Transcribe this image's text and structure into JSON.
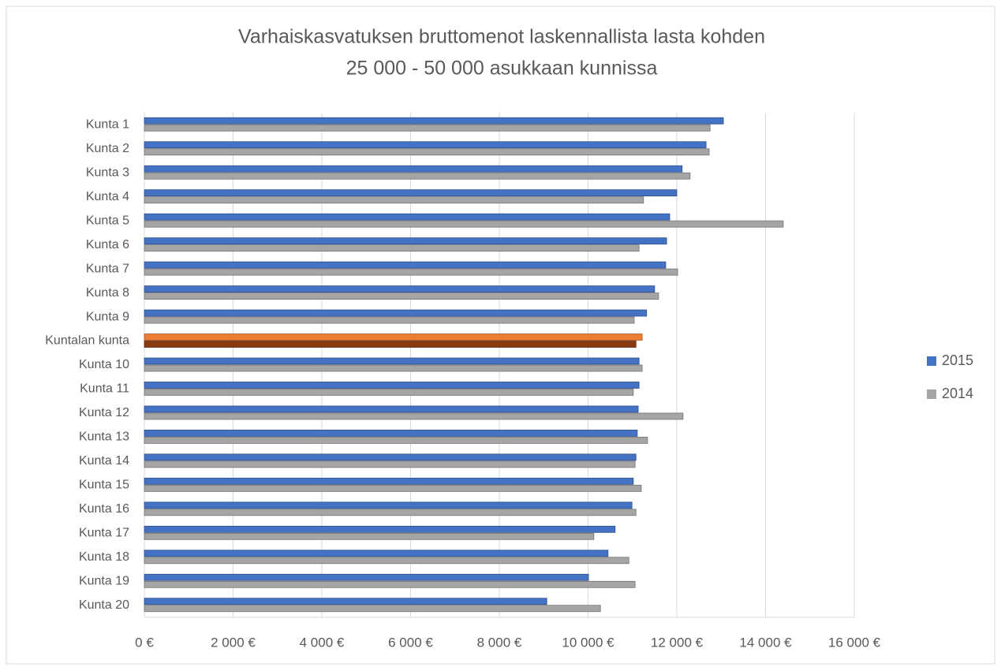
{
  "chart_data": {
    "type": "bar",
    "orientation": "horizontal",
    "title": [
      "Varhaiskasvatuksen bruttomenot laskennallista lasta kohden",
      "25 000 - 50 000 asukkaan kunnissa"
    ],
    "categories": [
      "Kunta 1",
      "Kunta 2",
      "Kunta 3",
      "Kunta 4",
      "Kunta 5",
      "Kunta 6",
      "Kunta 7",
      "Kunta 8",
      "Kunta 9",
      "Kuntalan kunta",
      "Kunta 10",
      "Kunta 11",
      "Kunta 12",
      "Kunta 13",
      "Kunta 14",
      "Kunta 15",
      "Kunta 16",
      "Kunta 17",
      "Kunta 18",
      "Kunta 19",
      "Kunta 20"
    ],
    "series": [
      {
        "name": "2015",
        "color": "#4472c4",
        "values": [
          13050,
          12660,
          12120,
          12000,
          11840,
          11770,
          11750,
          11500,
          11320,
          11220,
          11150,
          11150,
          11130,
          11110,
          11080,
          11020,
          10990,
          10610,
          10450,
          10010,
          9070
        ]
      },
      {
        "name": "2014",
        "color": "#a5a5a5",
        "values": [
          12750,
          12730,
          12300,
          11250,
          14400,
          11150,
          12020,
          11590,
          11040,
          11080,
          11220,
          11020,
          12140,
          11340,
          11060,
          11200,
          11080,
          10130,
          10920,
          11060,
          10280
        ]
      }
    ],
    "highlight": {
      "category_index": 9,
      "colors": [
        "#ed7d31",
        "#8b3a0f"
      ]
    },
    "xlim": [
      0,
      16000
    ],
    "xticks": [
      {
        "value": 0,
        "label": "0 €"
      },
      {
        "value": 2000,
        "label": "2 000 €"
      },
      {
        "value": 4000,
        "label": "4 000 €"
      },
      {
        "value": 6000,
        "label": "6 000 €"
      },
      {
        "value": 8000,
        "label": "8 000 €"
      },
      {
        "value": 10000,
        "label": "10 000 €"
      },
      {
        "value": 12000,
        "label": "12 000 €"
      },
      {
        "value": 14000,
        "label": "14 000 €"
      },
      {
        "value": 16000,
        "label": "16 000 €"
      }
    ],
    "grid": true,
    "legend": "right"
  }
}
